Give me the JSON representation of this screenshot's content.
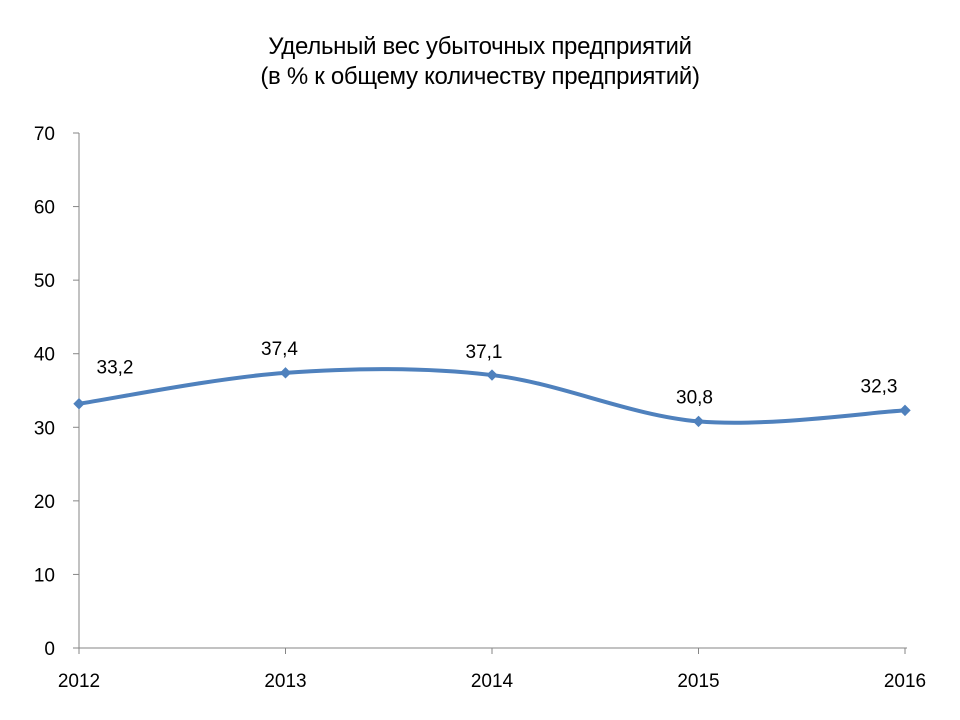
{
  "chart_data": {
    "type": "line",
    "title": "Удельный вес убыточных предприятий",
    "subtitle": "(в % к общему количеству предприятий)",
    "categories": [
      "2012",
      "2013",
      "2014",
      "2015",
      "2016"
    ],
    "series": [
      {
        "values": [
          33.2,
          37.4,
          37.1,
          30.8,
          32.3
        ],
        "data_labels": [
          "33,2",
          "37,4",
          "37,1",
          "30,8",
          "32,3"
        ],
        "color": "#4f81bd",
        "smooth": true,
        "marker": "diamond"
      }
    ],
    "ylim": [
      0,
      70
    ],
    "yticks": [
      0,
      10,
      20,
      30,
      40,
      50,
      60,
      70
    ],
    "xlabel": "",
    "ylabel": "",
    "grid": false,
    "legend": "none"
  },
  "colors": {
    "axis": "#868686",
    "series": "#4f81bd"
  }
}
